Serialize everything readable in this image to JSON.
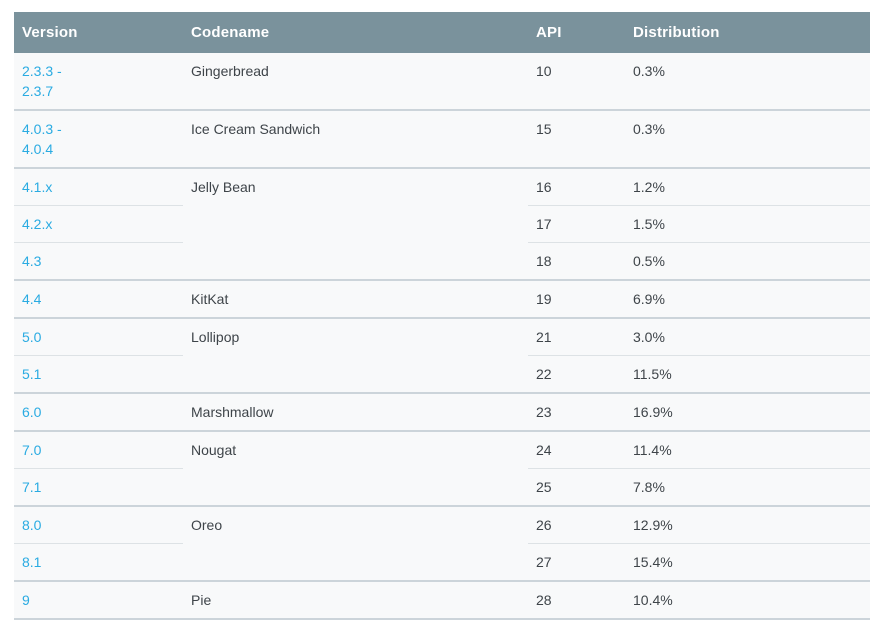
{
  "colors": {
    "header_background": "#7a929c",
    "header_text": "#ffffff",
    "row_background": "#f8f9fa",
    "page_background": "#ffffff",
    "version_link": "#2aabe2",
    "body_text": "#3e4449",
    "divider_inner": "#dde2e5",
    "divider_group": "#ccd4da"
  },
  "table": {
    "columns": [
      {
        "label": "Version"
      },
      {
        "label": "Codename"
      },
      {
        "label": "API"
      },
      {
        "label": "Distribution"
      }
    ],
    "groups": [
      {
        "codename": "Gingerbread",
        "rows": [
          {
            "version": "2.3.3 -\n2.3.7",
            "api": "10",
            "distribution": "0.3%"
          }
        ]
      },
      {
        "codename": "Ice Cream Sandwich",
        "rows": [
          {
            "version": "4.0.3 -\n4.0.4",
            "api": "15",
            "distribution": "0.3%"
          }
        ]
      },
      {
        "codename": "Jelly Bean",
        "rows": [
          {
            "version": "4.1.x",
            "api": "16",
            "distribution": "1.2%"
          },
          {
            "version": "4.2.x",
            "api": "17",
            "distribution": "1.5%"
          },
          {
            "version": "4.3",
            "api": "18",
            "distribution": "0.5%"
          }
        ]
      },
      {
        "codename": "KitKat",
        "rows": [
          {
            "version": "4.4",
            "api": "19",
            "distribution": "6.9%"
          }
        ]
      },
      {
        "codename": "Lollipop",
        "rows": [
          {
            "version": "5.0",
            "api": "21",
            "distribution": "3.0%"
          },
          {
            "version": "5.1",
            "api": "22",
            "distribution": "11.5%"
          }
        ]
      },
      {
        "codename": "Marshmallow",
        "rows": [
          {
            "version": "6.0",
            "api": "23",
            "distribution": "16.9%"
          }
        ]
      },
      {
        "codename": "Nougat",
        "rows": [
          {
            "version": "7.0",
            "api": "24",
            "distribution": "11.4%"
          },
          {
            "version": "7.1",
            "api": "25",
            "distribution": "7.8%"
          }
        ]
      },
      {
        "codename": "Oreo",
        "rows": [
          {
            "version": "8.0",
            "api": "26",
            "distribution": "12.9%"
          },
          {
            "version": "8.1",
            "api": "27",
            "distribution": "15.4%"
          }
        ]
      },
      {
        "codename": "Pie",
        "rows": [
          {
            "version": "9",
            "api": "28",
            "distribution": "10.4%"
          }
        ]
      }
    ]
  }
}
